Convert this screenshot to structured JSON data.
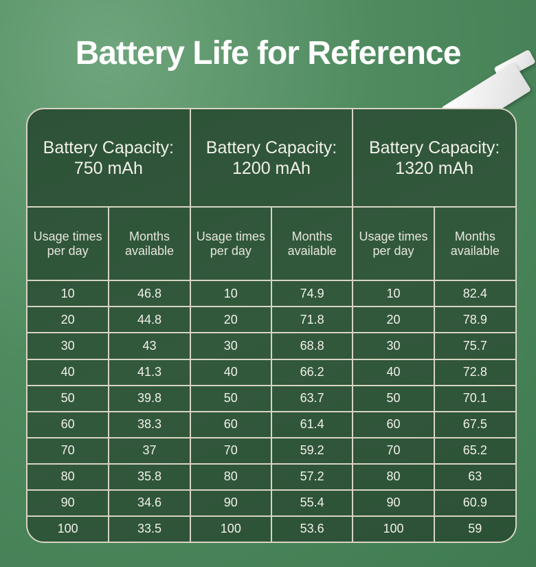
{
  "title": "Battery Life for Reference",
  "groups": [
    {
      "capacity_label": "Battery Capacity:",
      "capacity": "750 mAh",
      "col1": "Usage times per day",
      "col2": "Months available",
      "rows": [
        [
          "10",
          "46.8"
        ],
        [
          "20",
          "44.8"
        ],
        [
          "30",
          "43"
        ],
        [
          "40",
          "41.3"
        ],
        [
          "50",
          "39.8"
        ],
        [
          "60",
          "38.3"
        ],
        [
          "70",
          "37"
        ],
        [
          "80",
          "35.8"
        ],
        [
          "90",
          "34.6"
        ],
        [
          "100",
          "33.5"
        ]
      ]
    },
    {
      "capacity_label": "Battery Capacity:",
      "capacity": "1200 mAh",
      "col1": "Usage times per day",
      "col2": "Months available",
      "rows": [
        [
          "10",
          "74.9"
        ],
        [
          "20",
          "71.8"
        ],
        [
          "30",
          "68.8"
        ],
        [
          "40",
          "66.2"
        ],
        [
          "50",
          "63.7"
        ],
        [
          "60",
          "61.4"
        ],
        [
          "70",
          "59.2"
        ],
        [
          "80",
          "57.2"
        ],
        [
          "90",
          "55.4"
        ],
        [
          "100",
          "53.6"
        ]
      ]
    },
    {
      "capacity_label": "Battery Capacity:",
      "capacity": "1320 mAh",
      "col1": "Usage times per day",
      "col2": "Months available",
      "rows": [
        [
          "10",
          "82.4"
        ],
        [
          "20",
          "78.9"
        ],
        [
          "30",
          "75.7"
        ],
        [
          "40",
          "72.8"
        ],
        [
          "50",
          "70.1"
        ],
        [
          "60",
          "67.5"
        ],
        [
          "70",
          "65.2"
        ],
        [
          "80",
          "63"
        ],
        [
          "90",
          "60.9"
        ],
        [
          "100",
          "59"
        ]
      ]
    }
  ],
  "colors": {
    "background": "#4f8a5f",
    "board": "#2f553a",
    "grid": "#d8d5c2",
    "text": "#ffffff"
  }
}
